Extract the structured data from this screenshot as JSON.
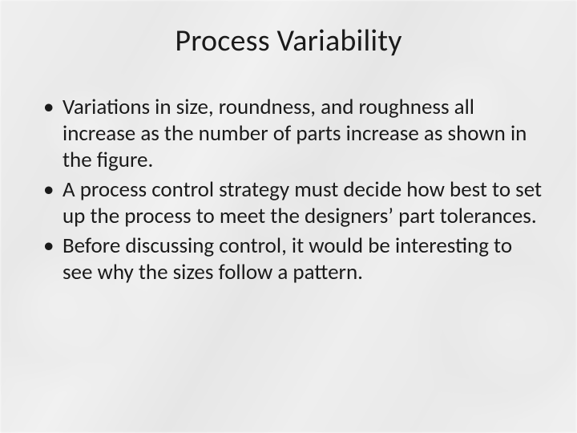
{
  "slide": {
    "title": "Process Variability",
    "title_fontsize": 38,
    "title_color": "#1a1a1a",
    "body_fontsize": 27,
    "body_color": "#1a1a1a",
    "bullets": [
      "Variations in size, roundness, and roughness all increase as the number of parts increase as shown in the figure.",
      "A process control strategy must decide how best to set up the process to meet the designers’ part tolerances.",
      "Before discussing control, it would be interesting to see why the sizes follow a pattern."
    ],
    "background": {
      "overlay_color": "rgba(255,255,255,0.72)",
      "base_gradient": "mechanical-gears-grayscale"
    }
  }
}
